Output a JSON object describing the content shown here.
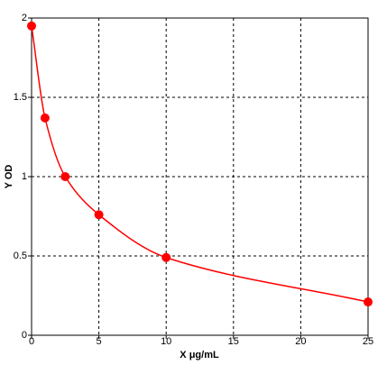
{
  "chart_data": {
    "type": "scatter",
    "xlabel": "X μg/mL",
    "ylabel": "Y OD",
    "x": [
      0,
      1,
      2.5,
      5,
      10,
      25
    ],
    "series": [
      {
        "color": "#ff0000",
        "values": [
          1.95,
          1.37,
          1.0,
          0.76,
          0.49,
          0.21
        ]
      }
    ],
    "smooth_line": true,
    "xlim": [
      0,
      25
    ],
    "xticks": [
      0,
      5,
      10,
      15,
      20,
      25
    ],
    "ylim": [
      0,
      2
    ],
    "yticks": [
      0,
      0.5,
      1,
      1.5,
      2
    ],
    "grid": true
  }
}
